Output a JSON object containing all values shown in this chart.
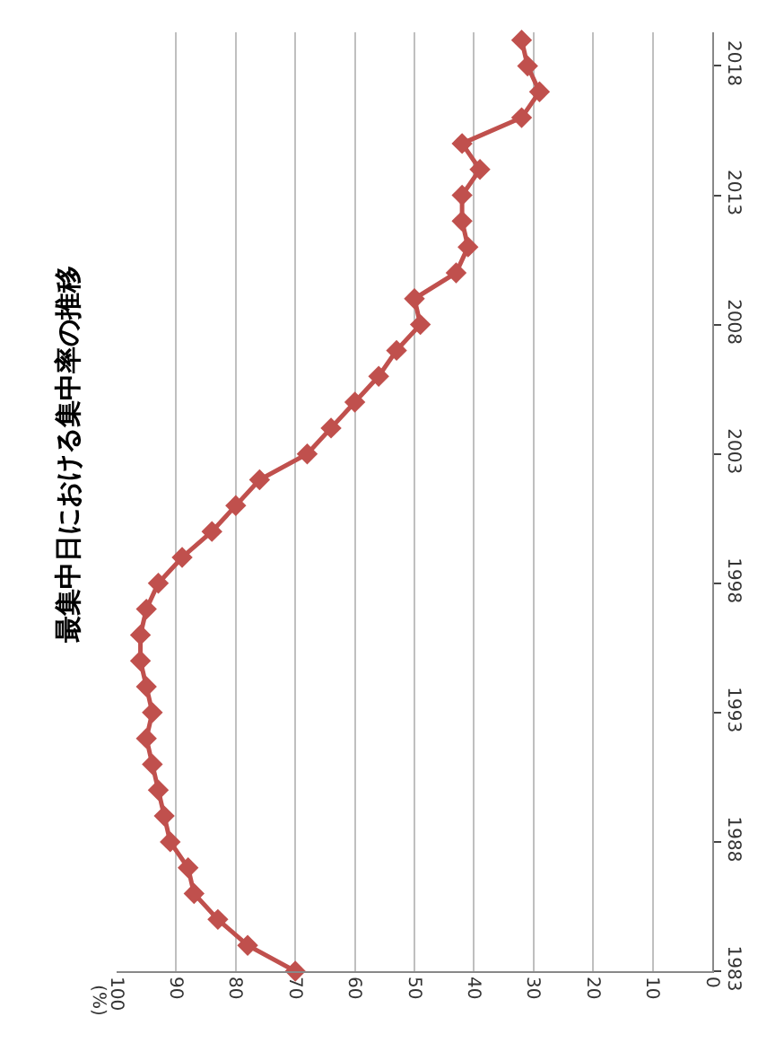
{
  "chart_data": {
    "type": "line",
    "title": "最集中日における集中率の推移",
    "annotations": [
      "(%)"
    ],
    "series": [
      {
        "color": "#c0504d",
        "x": [
          70,
          78,
          83,
          87,
          88,
          91,
          92,
          93,
          94,
          95,
          94,
          95,
          96,
          96,
          95,
          93,
          89,
          84,
          80,
          76,
          68,
          64,
          60,
          56,
          53,
          49,
          50,
          43,
          41,
          42,
          42,
          39,
          42,
          32,
          29,
          31,
          32
        ],
        "values": [
          1983,
          1984,
          1985,
          1986,
          1987,
          1988,
          1989,
          1990,
          1991,
          1992,
          1993,
          1994,
          1995,
          1996,
          1997,
          1998,
          1999,
          2000,
          2001,
          2002,
          2003,
          2004,
          2005,
          2006,
          2007,
          2008,
          2009,
          2010,
          2011,
          2012,
          2013,
          2014,
          2015,
          2016,
          2017,
          2018,
          2019
        ]
      }
    ],
    "ylim": [
      1983,
      2019.3
    ],
    "yticks": [
      1983,
      1988,
      1993,
      1998,
      2003,
      2008,
      2013,
      2018
    ],
    "xlim": [
      100,
      0
    ],
    "xticks": [
      0,
      10,
      20,
      30,
      40,
      50,
      60,
      70,
      80,
      90,
      100
    ],
    "grid": "x",
    "marker": "diamond",
    "line_style": "solid",
    "legend": false
  }
}
